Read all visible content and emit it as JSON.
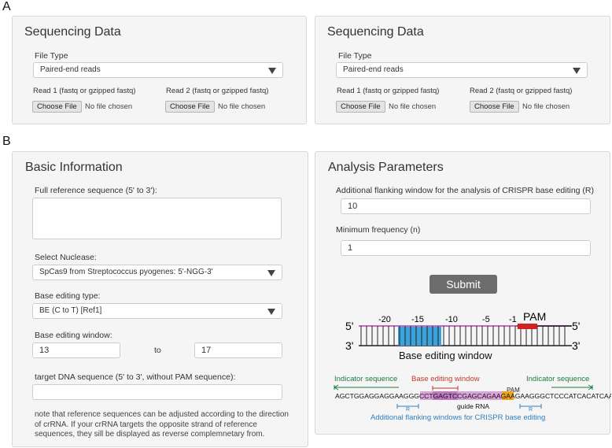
{
  "labels": {
    "a": "A",
    "b": "B"
  },
  "seq_panels": [
    {
      "title": "Sequencing Data",
      "file_type_label": "File Type",
      "file_type_value": "Paired-end reads",
      "read1_label": "Read 1 (fastq or gzipped fastq)",
      "read2_label": "Read 2 (fastq or gzipped fastq)",
      "choose_file": "Choose File",
      "no_file": "No file chosen"
    },
    {
      "title": "Sequencing Data",
      "file_type_label": "File Type",
      "file_type_value": "Paired-end reads",
      "read1_label": "Read 1 (fastq or gzipped fastq)",
      "read2_label": "Read 2 (fastq or gzipped fastq)",
      "choose_file": "Choose File",
      "no_file": "No file chosen"
    }
  ],
  "basic": {
    "title": "Basic Information",
    "ref_label": "Full reference sequence (5' to 3'):",
    "ref_value": "",
    "nuclease_label": "Select Nuclease:",
    "nuclease_value": "SpCas9 from Streptococcus pyogenes: 5'-NGG-3'",
    "be_type_label": "Base editing type:",
    "be_type_value": "BE (C to T) [Ref1]",
    "window_label": "Base editing window:",
    "window_from": "13",
    "to_label": "to",
    "window_to": "17",
    "target_label": "target DNA sequence (5' to 3', without PAM sequence):",
    "target_value": "",
    "note": "note that reference sequences can be adjusted according to the direction of crRNA. If your crRNA targets the opposite strand of reference sequences, they sill be displayed as reverse complemnetary from."
  },
  "analysis": {
    "title": "Analysis Parameters",
    "flank_label": "Additional flanking window for the analysis of CRISPR base editing (R)",
    "flank_value": "10",
    "minfreq_label": "Minimum frequency (n)",
    "minfreq_value": "1",
    "submit": "Submit"
  },
  "diagram": {
    "five_prime": "5'",
    "three_prime": "3'",
    "positions": [
      "-20",
      "-15",
      "-10",
      "-5",
      "-1"
    ],
    "pam": "PAM",
    "window_caption": "Base editing window",
    "indicator_left": "Indicator sequence",
    "indicator_right": "Indicator sequence",
    "be_window": "Base editing window",
    "pam_small": "PAM",
    "seq_left": "AGCTGGAGGAGGAAGGGCCT",
    "seq_guide": "GAGTCCGAGCAGAAGAAGAA",
    "seq_pam": "GGG",
    "seq_right": "CTCCCATCACATCAACC",
    "r_left": "R",
    "r_right": "R",
    "guide_rna": "guide RNA",
    "flank_caption": "Additional flanking windows for CRISPR base editing",
    "colors": {
      "window_blue": "#3ba3d9",
      "pam_red": "#d32020",
      "guide_purple": "#c76bc7",
      "pam_orange": "#f0a020",
      "green": "#1e7b3a",
      "red": "#c0392b",
      "blue": "#2f7fc1"
    }
  }
}
